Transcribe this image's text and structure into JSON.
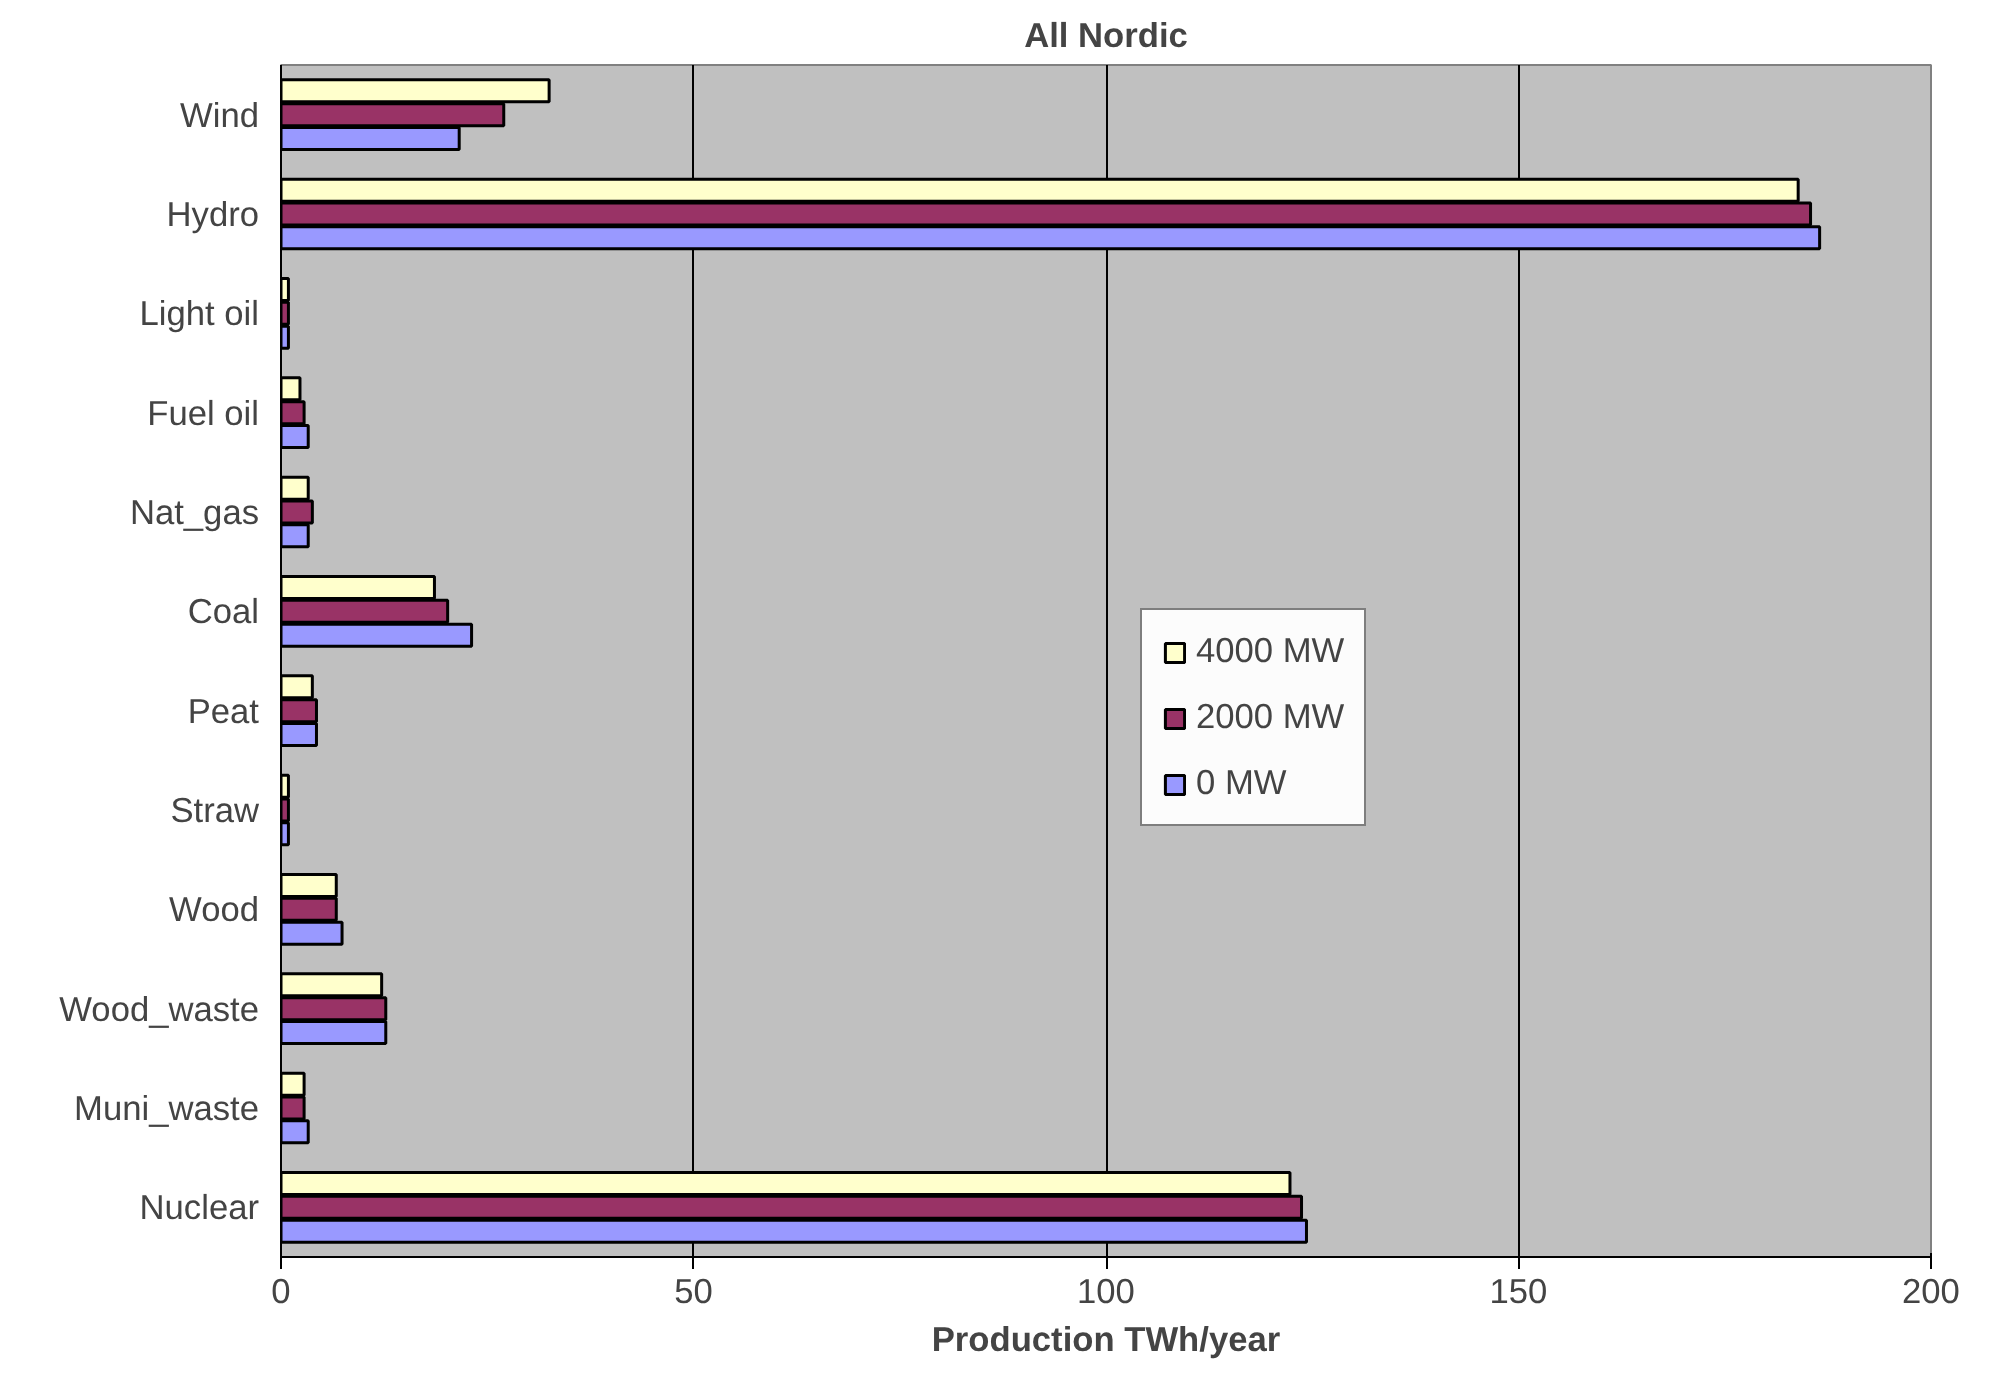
{
  "chart_data": {
    "type": "bar",
    "orientation": "horizontal",
    "title": "All Nordic",
    "xlabel": "Production TWh/year",
    "categories": [
      "Wind",
      "Hydro",
      "Light oil",
      "Fuel oil",
      "Nat_gas",
      "Coal",
      "Peat",
      "Straw",
      "Wood",
      "Wood_waste",
      "Muni_waste",
      "Nuclear"
    ],
    "series": [
      {
        "name": "4000 MW",
        "color": "#ffffcc",
        "values": [
          32.5,
          183.9,
          0.9,
          2.3,
          3.3,
          18.6,
          3.8,
          0.9,
          6.7,
          12.2,
          2.8,
          122.3
        ]
      },
      {
        "name": "2000 MW",
        "color": "#993366",
        "values": [
          27.0,
          185.4,
          0.9,
          2.8,
          3.8,
          20.2,
          4.3,
          0.9,
          6.7,
          12.7,
          2.8,
          123.7
        ]
      },
      {
        "name": "0 MW",
        "color": "#9999ff",
        "values": [
          21.6,
          186.5,
          0.9,
          3.3,
          3.3,
          23.1,
          4.3,
          0.9,
          7.4,
          12.7,
          3.3,
          124.3
        ]
      }
    ],
    "xlim": [
      0,
      200
    ],
    "xticks": [
      0,
      50,
      100,
      150,
      200
    ],
    "grid": "x",
    "legend": "right"
  }
}
